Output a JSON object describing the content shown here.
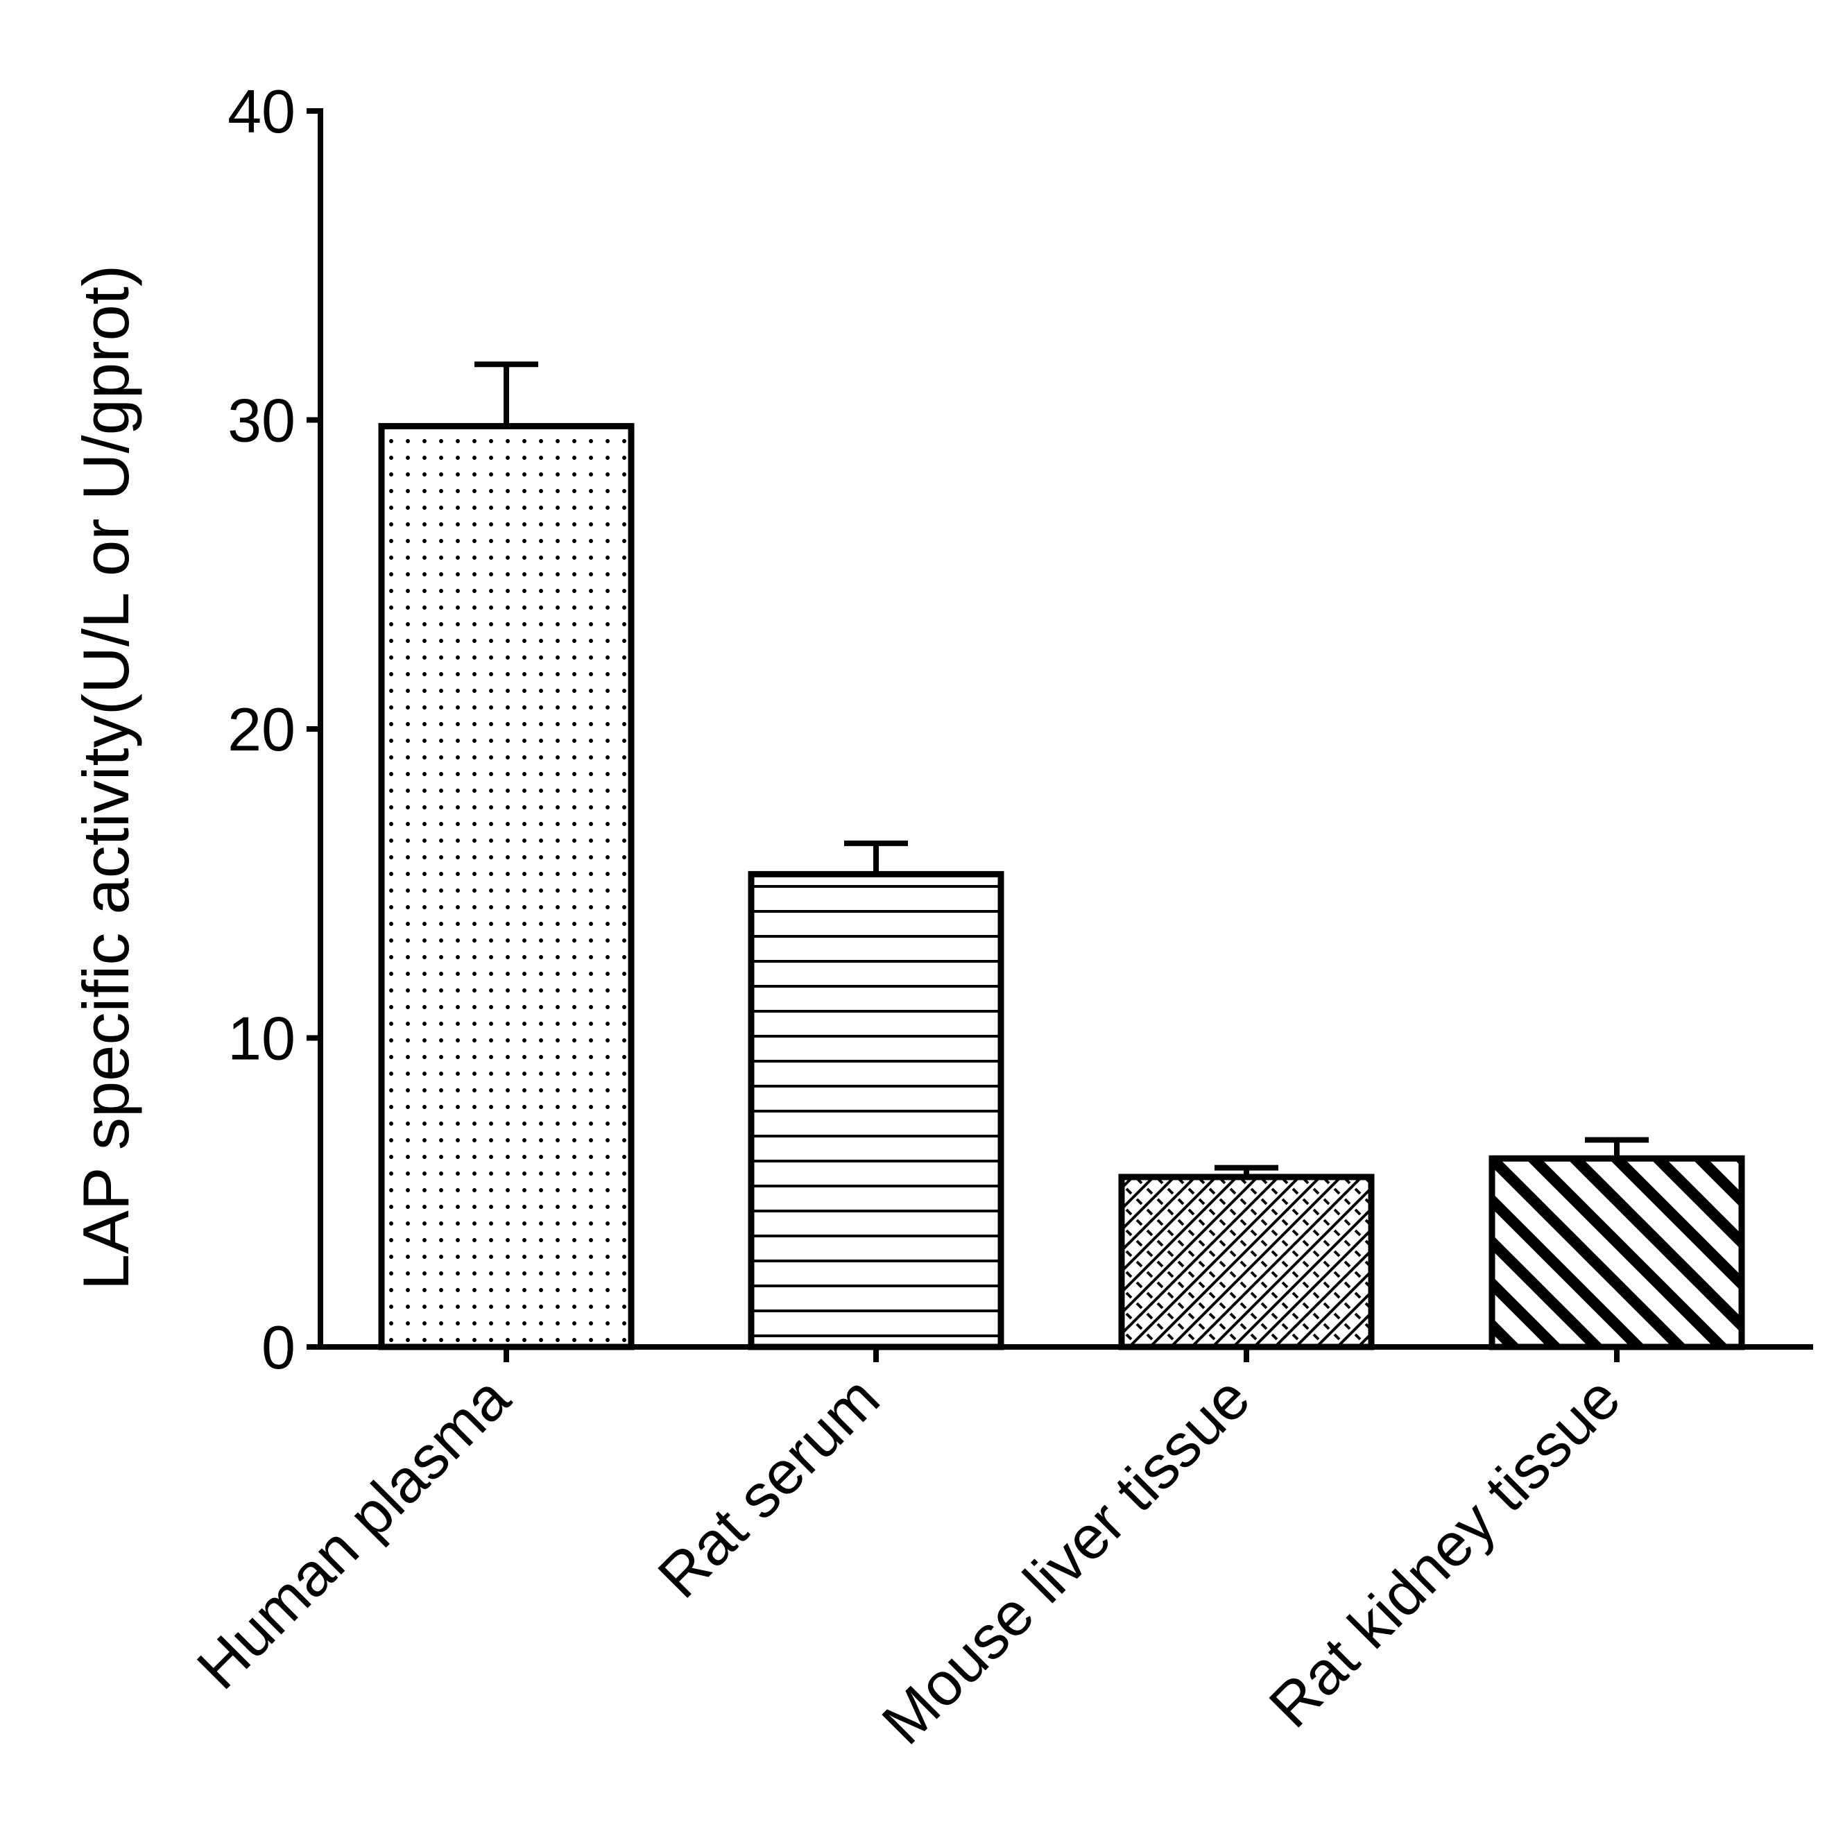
{
  "chart_data": {
    "type": "bar",
    "title": "",
    "xlabel": "",
    "ylabel": "LAP specific activity(U/L or U/gprot)",
    "ylim": [
      0,
      40
    ],
    "yticks": [
      0,
      10,
      20,
      30,
      40
    ],
    "categories": [
      "Human plasma",
      "Rat serum",
      "Mouse liver tissue",
      "Rat kidney tissue"
    ],
    "values": [
      29.8,
      15.3,
      5.5,
      6.1
    ],
    "errors": [
      2.0,
      1.0,
      0.3,
      0.6
    ],
    "fill_patterns": [
      "dots",
      "horizontal-lines",
      "crosshatch-brick",
      "diagonal-stripes"
    ],
    "grid": false,
    "legend": "none",
    "colors": {
      "stroke": "#000000",
      "background": "#ffffff"
    }
  }
}
